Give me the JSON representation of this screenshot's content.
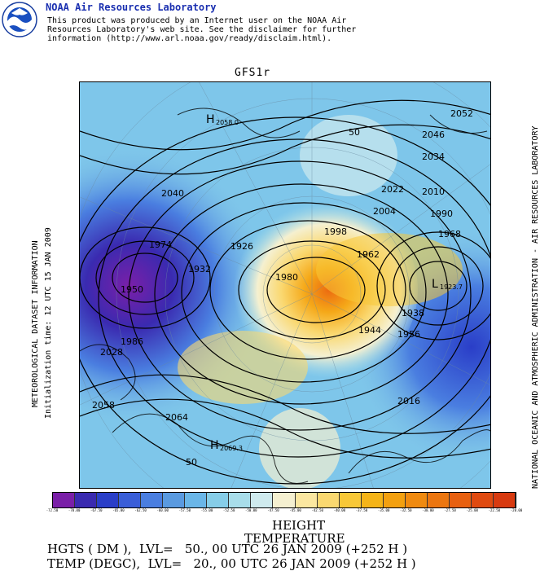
{
  "header": {
    "lab_name": "NOAA Air Resources Laboratory",
    "disclaimer": "This product was produced by an Internet user on the NOAA Air\nResources Laboratory's web site.  See the disclaimer for further\ninformation (http://www.arl.noaa.gov/ready/disclaim.html).",
    "logo_text": "NOAA"
  },
  "map": {
    "title": "GFS1r",
    "left_label_1": "METEOROLOGICAL DATASET INFORMATION",
    "left_label_2": "Initialization time: 12 UTC 15 JAN 2009",
    "right_label": "NATIONAL OCEANIC AND ATMOSPHERIC ADMINISTRATION - AIR RESOURCES LABORATORY",
    "contour_labels": [
      {
        "t": "H",
        "v": "2058.0"
      },
      {
        "t": "50"
      },
      {
        "t": "2052"
      },
      {
        "t": "2046"
      },
      {
        "t": "2034"
      },
      {
        "t": "2022"
      },
      {
        "t": "2010"
      },
      {
        "t": "2004"
      },
      {
        "t": "1990"
      },
      {
        "t": "1968"
      },
      {
        "t": "1962"
      },
      {
        "t": "1956"
      },
      {
        "t": "1950"
      },
      {
        "t": "1938"
      },
      {
        "t": "1944"
      },
      {
        "t": "1974"
      },
      {
        "t": "1986"
      },
      {
        "t": "1998"
      },
      {
        "t": "2028"
      },
      {
        "t": "2040"
      },
      {
        "t": "2016"
      },
      {
        "t": "1980"
      },
      {
        "t": "1932"
      },
      {
        "t": "1926"
      },
      {
        "t": "2064"
      },
      {
        "t": "2058"
      },
      {
        "t": "H",
        "v": "2069.3"
      },
      {
        "t": "L",
        "v": "1923.7"
      }
    ],
    "high_1": "H",
    "high_1_value": "2058.0",
    "high_2": "H",
    "high_2_value": "2069.3",
    "low_1": "L",
    "low_1_value": "1923.7"
  },
  "colorbar": {
    "colors": [
      "#7a1fa8",
      "#3a2ab0",
      "#2a3ec8",
      "#3a5ed8",
      "#4a7ee0",
      "#5a9ae0",
      "#6ab6e8",
      "#86cde8",
      "#a8ddea",
      "#cfeaee",
      "#f5f0d0",
      "#fbe7a0",
      "#fad870",
      "#f8c838",
      "#f5b418",
      "#f3a010",
      "#f08a10",
      "#ec7610",
      "#e86010",
      "#e04a10",
      "#d83a10"
    ],
    "labels": [
      "-72.50",
      "-70.00",
      "-67.50",
      "-65.00",
      "-62.50",
      "-60.00",
      "-57.50",
      "-55.00",
      "-52.50",
      "-50.00",
      "-47.50",
      "-45.00",
      "-42.50",
      "-40.00",
      "-37.50",
      "-35.00",
      "-32.50",
      "-30.00",
      "-27.50",
      "-25.00",
      "-22.50",
      "-20.00"
    ]
  },
  "legend": {
    "title_1": "HEIGHT",
    "title_2": "TEMPERATURE",
    "line_1": "HGTS ( DM ),  LVL=   50., 00 UTC 26 JAN 2009 (+252 H )",
    "line_2": "TEMP (DEGC),  LVL=   20., 00 UTC 26 JAN 2009 (+252 H )"
  }
}
